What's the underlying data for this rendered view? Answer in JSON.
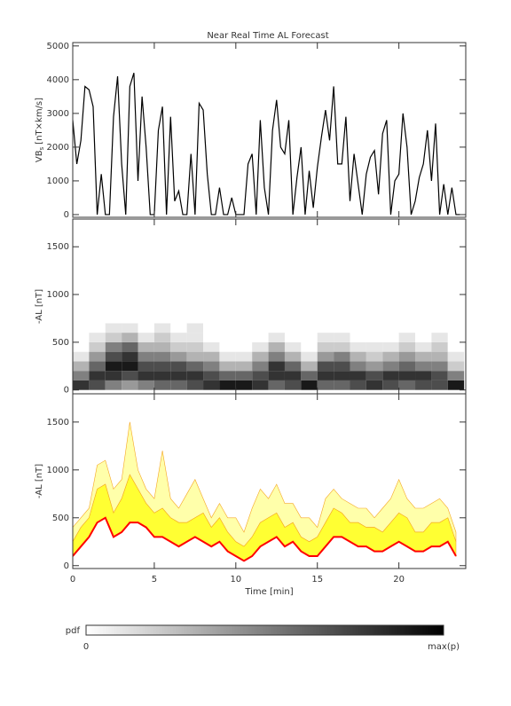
{
  "chart_data": [
    {
      "type": "line",
      "title": "Near Real Time AL Forecast",
      "ylabel": {
        "main": "VB",
        "sub": "s",
        "unit": "[nT×km/s]"
      },
      "color": "#000000",
      "x": [
        0,
        0.25,
        0.5,
        0.75,
        1,
        1.25,
        1.5,
        1.75,
        2,
        2.25,
        2.5,
        2.75,
        3,
        3.25,
        3.5,
        3.75,
        4,
        4.25,
        4.5,
        4.75,
        5,
        5.25,
        5.5,
        5.75,
        6,
        6.25,
        6.5,
        6.75,
        7,
        7.25,
        7.5,
        7.75,
        8,
        8.25,
        8.5,
        8.75,
        9,
        9.25,
        9.5,
        9.75,
        10,
        10.25,
        10.5,
        10.75,
        11,
        11.25,
        11.5,
        11.75,
        12,
        12.25,
        12.5,
        12.75,
        13,
        13.25,
        13.5,
        13.75,
        14,
        14.25,
        14.5,
        14.75,
        15,
        15.25,
        15.5,
        15.75,
        16,
        16.25,
        16.5,
        16.75,
        17,
        17.25,
        17.5,
        17.75,
        18,
        18.25,
        18.5,
        18.75,
        19,
        19.25,
        19.5,
        19.75,
        20,
        20.25,
        20.5,
        20.75,
        21,
        21.25,
        21.5,
        21.75,
        22,
        22.25,
        22.5,
        22.75,
        23,
        23.25,
        23.5,
        23.75
      ],
      "values": [
        2800,
        1500,
        2200,
        3800,
        3700,
        3200,
        0,
        1200,
        0,
        0,
        2900,
        4100,
        1500,
        0,
        3800,
        4200,
        1000,
        3500,
        2000,
        0,
        0,
        2500,
        3200,
        0,
        2900,
        400,
        700,
        0,
        0,
        1800,
        0,
        3300,
        3100,
        1200,
        0,
        0,
        800,
        0,
        0,
        500,
        0,
        0,
        0,
        1500,
        1800,
        0,
        2800,
        800,
        0,
        2500,
        3400,
        2000,
        1800,
        2800,
        0,
        1100,
        2000,
        0,
        1300,
        200,
        1400,
        2300,
        3100,
        2200,
        3800,
        1500,
        1500,
        2900,
        400,
        1800,
        900,
        0,
        1200,
        1700,
        1900,
        600,
        2400,
        2800,
        0,
        1000,
        1200,
        3000,
        2000,
        0,
        400,
        1100,
        1500,
        2500,
        1000,
        2700,
        0,
        900,
        0,
        800,
        0,
        0
      ],
      "xlim": [
        0,
        24.1
      ],
      "xticks": [
        0,
        5,
        10,
        15,
        20
      ],
      "ylim": [
        -80,
        5100
      ],
      "yticks": [
        0,
        1000,
        2000,
        3000,
        4000,
        5000
      ]
    },
    {
      "type": "heatmap",
      "ylabel": "-AL [nT]",
      "xbins": [
        0,
        1,
        2,
        3,
        4,
        5,
        6,
        7,
        8,
        9,
        10,
        11,
        12,
        13,
        14,
        15,
        16,
        17,
        18,
        19,
        20,
        21,
        22,
        23,
        24
      ],
      "ybins": [
        0,
        100,
        200,
        300,
        400,
        500,
        600,
        700,
        800
      ],
      "values": [
        [
          0.8,
          0.5,
          0.3,
          0.1,
          0,
          0,
          0,
          0
        ],
        [
          0.7,
          0.8,
          0.6,
          0.4,
          0.2,
          0.1,
          0,
          0
        ],
        [
          0.5,
          0.8,
          0.9,
          0.7,
          0.5,
          0.2,
          0.1,
          0
        ],
        [
          0.4,
          0.7,
          0.9,
          0.8,
          0.6,
          0.3,
          0.1,
          0
        ],
        [
          0.5,
          0.8,
          0.7,
          0.5,
          0.3,
          0.1,
          0,
          0
        ],
        [
          0.6,
          0.8,
          0.7,
          0.5,
          0.3,
          0.2,
          0.1,
          0
        ],
        [
          0.6,
          0.8,
          0.7,
          0.4,
          0.2,
          0.1,
          0,
          0
        ],
        [
          0.7,
          0.8,
          0.6,
          0.3,
          0.2,
          0.1,
          0.1,
          0
        ],
        [
          0.8,
          0.7,
          0.5,
          0.3,
          0.1,
          0,
          0,
          0
        ],
        [
          0.9,
          0.6,
          0.3,
          0.1,
          0,
          0,
          0,
          0
        ],
        [
          0.9,
          0.6,
          0.3,
          0.1,
          0,
          0,
          0,
          0
        ],
        [
          0.8,
          0.7,
          0.5,
          0.3,
          0.1,
          0,
          0,
          0
        ],
        [
          0.6,
          0.8,
          0.8,
          0.5,
          0.3,
          0.1,
          0,
          0
        ],
        [
          0.7,
          0.8,
          0.6,
          0.3,
          0.1,
          0,
          0,
          0
        ],
        [
          0.9,
          0.6,
          0.3,
          0.1,
          0,
          0,
          0,
          0
        ],
        [
          0.6,
          0.8,
          0.7,
          0.4,
          0.2,
          0.1,
          0,
          0
        ],
        [
          0.6,
          0.8,
          0.7,
          0.5,
          0.2,
          0.1,
          0,
          0
        ],
        [
          0.7,
          0.8,
          0.5,
          0.3,
          0.1,
          0,
          0,
          0
        ],
        [
          0.8,
          0.7,
          0.4,
          0.2,
          0.1,
          0,
          0,
          0
        ],
        [
          0.7,
          0.8,
          0.5,
          0.3,
          0.1,
          0,
          0,
          0
        ],
        [
          0.6,
          0.8,
          0.6,
          0.4,
          0.2,
          0.1,
          0,
          0
        ],
        [
          0.7,
          0.8,
          0.5,
          0.3,
          0.1,
          0,
          0,
          0
        ],
        [
          0.7,
          0.7,
          0.5,
          0.3,
          0.2,
          0.1,
          0,
          0
        ],
        [
          0.9,
          0.5,
          0.2,
          0.1,
          0,
          0,
          0,
          0
        ]
      ],
      "xlim": [
        0,
        24.1
      ],
      "xticks": [
        0,
        5,
        10,
        15,
        20
      ],
      "ylim": [
        -40,
        1790
      ],
      "yticks": [
        0,
        500,
        1000,
        1500
      ]
    },
    {
      "type": "band",
      "ylabel": "-AL [nT]",
      "xlabel": "Time [min]",
      "edgecolor": "#f5a623",
      "x": [
        0,
        0.5,
        1,
        1.5,
        2,
        2.5,
        3,
        3.5,
        4,
        4.5,
        5,
        5.5,
        6,
        6.5,
        7,
        7.5,
        8,
        8.5,
        9,
        9.5,
        10,
        10.5,
        11,
        11.5,
        12,
        12.5,
        13,
        13.5,
        14,
        14.5,
        15,
        15.5,
        16,
        16.5,
        17,
        17.5,
        18,
        18.5,
        19,
        19.5,
        20,
        20.5,
        21,
        21.5,
        22,
        22.5,
        23,
        23.5
      ],
      "series": [
        {
          "color": "#ff0000",
          "values": [
            100,
            200,
            300,
            450,
            500,
            300,
            350,
            450,
            450,
            400,
            300,
            300,
            250,
            200,
            250,
            300,
            250,
            200,
            250,
            150,
            100,
            50,
            100,
            200,
            250,
            300,
            200,
            250,
            150,
            100,
            100,
            200,
            300,
            300,
            250,
            200,
            200,
            150,
            150,
            200,
            250,
            200,
            150,
            150,
            200,
            200,
            250,
            100
          ]
        },
        {
          "color": "#ffff33",
          "values": [
            250,
            400,
            500,
            800,
            850,
            550,
            700,
            950,
            800,
            650,
            550,
            600,
            500,
            450,
            450,
            500,
            550,
            400,
            500,
            350,
            250,
            200,
            300,
            450,
            500,
            550,
            400,
            450,
            300,
            250,
            300,
            450,
            600,
            550,
            450,
            450,
            400,
            400,
            350,
            450,
            550,
            500,
            350,
            350,
            450,
            450,
            500,
            250
          ]
        },
        {
          "color": "#ffffaa",
          "values": [
            400,
            500,
            600,
            1050,
            1100,
            800,
            900,
            1500,
            1000,
            800,
            700,
            1200,
            700,
            600,
            750,
            900,
            700,
            500,
            650,
            500,
            500,
            350,
            600,
            800,
            700,
            850,
            650,
            650,
            500,
            500,
            400,
            700,
            800,
            700,
            650,
            600,
            600,
            500,
            600,
            700,
            900,
            700,
            600,
            600,
            650,
            700,
            600,
            350
          ]
        }
      ],
      "xlim": [
        0,
        24.1
      ],
      "xticks": [
        0,
        5,
        10,
        15,
        20
      ],
      "ylim": [
        -30,
        1795
      ],
      "yticks": [
        0,
        500,
        1000,
        1500
      ]
    }
  ],
  "colorbar": {
    "label": "pdf",
    "min_label": "0",
    "max_label": "max(p)"
  }
}
